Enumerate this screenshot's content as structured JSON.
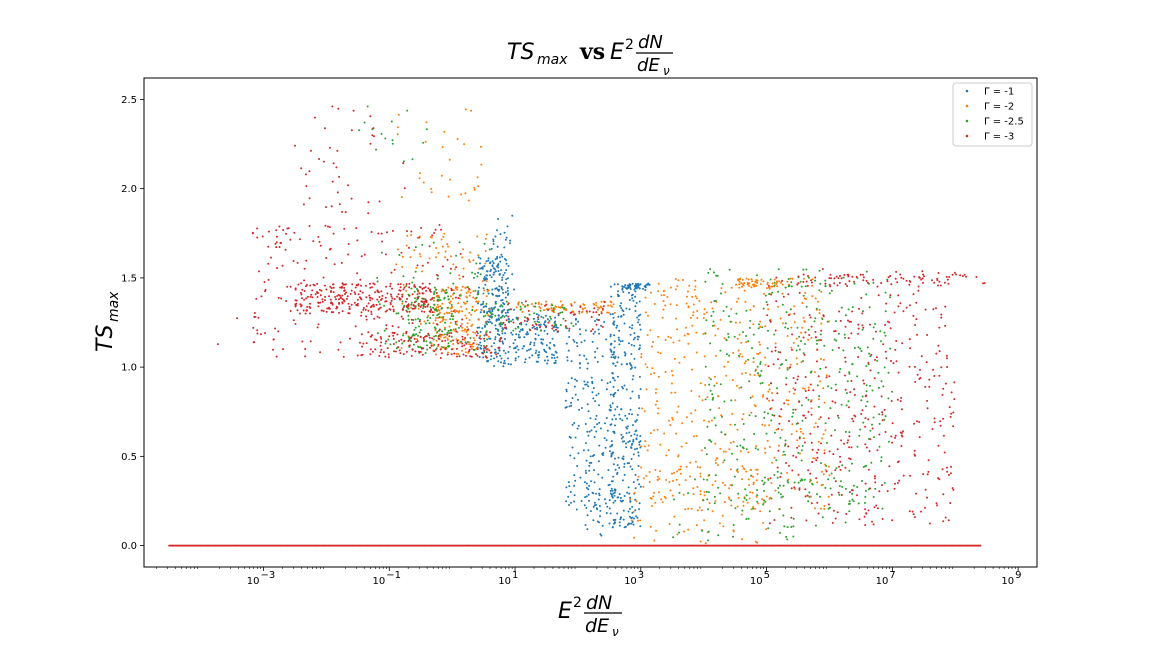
{
  "chart_data": {
    "type": "scatter",
    "title": {
      "lhs": "TS",
      "lhs_sub": "max",
      "vs": "vs",
      "rhs_base": "E",
      "rhs_sup": "2",
      "rhs_num": "dN",
      "rhs_den": "dE",
      "rhs_den_sub": "ν"
    },
    "xlabel": {
      "base": "E",
      "sup": "2",
      "num": "dN",
      "den": "dE",
      "den_sub": "ν"
    },
    "ylabel": {
      "base": "TS",
      "sub": "max"
    },
    "x_scale": "log",
    "xlim_log10": [
      -4.9,
      9.3
    ],
    "ylim": [
      -0.12,
      2.62
    ],
    "x_ticks": [
      {
        "base": "10",
        "exp": "−3",
        "log10": -3
      },
      {
        "base": "10",
        "exp": "−1",
        "log10": -1
      },
      {
        "base": "10",
        "exp": "1",
        "log10": 1
      },
      {
        "base": "10",
        "exp": "3",
        "log10": 3
      },
      {
        "base": "10",
        "exp": "5",
        "log10": 5
      },
      {
        "base": "10",
        "exp": "7",
        "log10": 7
      },
      {
        "base": "10",
        "exp": "9",
        "log10": 9
      }
    ],
    "y_ticks": [
      {
        "label": "0.0",
        "value": 0.0
      },
      {
        "label": "0.5",
        "value": 0.5
      },
      {
        "label": "1.0",
        "value": 1.0
      },
      {
        "label": "1.5",
        "value": 1.5
      },
      {
        "label": "2.0",
        "value": 2.0
      },
      {
        "label": "2.5",
        "value": 2.5
      }
    ],
    "grid": false,
    "legend_position": "top-right",
    "series": [
      {
        "name": "Γ =  -1",
        "color": "#1f77b4",
        "clusters": [
          {
            "lx": [
              0.4,
              0.9
            ],
            "y": [
              1.03,
              1.62
            ],
            "n": 220
          },
          {
            "lx": [
              0.6,
              1.0
            ],
            "y": [
              1.0,
              1.85
            ],
            "n": 60
          },
          {
            "lx": [
              1.0,
              1.7
            ],
            "y": [
              1.02,
              1.3
            ],
            "n": 120
          },
          {
            "lx": [
              1.8,
              2.6
            ],
            "y": [
              0.2,
              1.3
            ],
            "n": 200
          },
          {
            "lx": [
              2.5,
              3.0
            ],
            "y": [
              0.1,
              1.47
            ],
            "n": 280
          },
          {
            "lx": [
              2.7,
              3.15
            ],
            "y": [
              1.43,
              1.47
            ],
            "n": 50
          },
          {
            "lx": [
              2.1,
              2.6
            ],
            "y": [
              0.05,
              0.4
            ],
            "n": 40
          }
        ]
      },
      {
        "name": "Γ =  -2",
        "color": "#ff7f0e",
        "clusters": [
          {
            "lx": [
              -0.3,
              0.4
            ],
            "y": [
              1.07,
              1.45
            ],
            "n": 150
          },
          {
            "lx": [
              -0.9,
              0.6
            ],
            "y": [
              1.1,
              1.75
            ],
            "n": 110
          },
          {
            "lx": [
              -1.0,
              0.5
            ],
            "y": [
              1.9,
              2.5
            ],
            "n": 30
          },
          {
            "lx": [
              1.0,
              2.6
            ],
            "y": [
              1.3,
              1.37
            ],
            "n": 80
          },
          {
            "lx": [
              3.0,
              6.0
            ],
            "y": [
              0.2,
              1.5
            ],
            "n": 450
          },
          {
            "lx": [
              2.8,
              5.0
            ],
            "y": [
              0.0,
              0.45
            ],
            "n": 80
          },
          {
            "lx": [
              4.5,
              5.4
            ],
            "y": [
              1.44,
              1.5
            ],
            "n": 50
          }
        ]
      },
      {
        "name": "Γ =  -2.5",
        "color": "#2ca02c",
        "clusters": [
          {
            "lx": [
              -0.7,
              0.0
            ],
            "y": [
              1.1,
              1.45
            ],
            "n": 130
          },
          {
            "lx": [
              -1.2,
              0.6
            ],
            "y": [
              1.05,
              1.7
            ],
            "n": 80
          },
          {
            "lx": [
              -1.5,
              -0.4
            ],
            "y": [
              2.15,
              2.5
            ],
            "n": 15
          },
          {
            "lx": [
              0.5,
              2.0
            ],
            "y": [
              1.2,
              1.37
            ],
            "n": 70
          },
          {
            "lx": [
              4.0,
              7.0
            ],
            "y": [
              0.2,
              1.55
            ],
            "n": 380
          },
          {
            "lx": [
              3.5,
              6.5
            ],
            "y": [
              0.02,
              0.4
            ],
            "n": 60
          }
        ]
      },
      {
        "name": "Γ =  -3",
        "color": "#d62728",
        "clusters": [
          {
            "lx": [
              -2.5,
              -0.3
            ],
            "y": [
              1.3,
              1.47
            ],
            "n": 280
          },
          {
            "lx": [
              -3.2,
              0.3
            ],
            "y": [
              1.05,
              1.8
            ],
            "n": 200
          },
          {
            "lx": [
              -1.5,
              0.8
            ],
            "y": [
              1.05,
              1.2
            ],
            "n": 120
          },
          {
            "lx": [
              -2.5,
              -0.6
            ],
            "y": [
              1.85,
              2.5
            ],
            "n": 40
          },
          {
            "lx": [
              0.8,
              2.5
            ],
            "y": [
              1.2,
              1.37
            ],
            "n": 60
          },
          {
            "lx": [
              5.0,
              8.0
            ],
            "y": [
              0.1,
              1.55
            ],
            "n": 420
          },
          {
            "lx": [
              5.5,
              8.5
            ],
            "y": [
              1.45,
              1.52
            ],
            "n": 70
          },
          {
            "lx": [
              -4.2,
              -2.5
            ],
            "y": [
              1.1,
              1.7
            ],
            "n": 8
          }
        ]
      }
    ],
    "baseline": {
      "value": 0.0,
      "lx": [
        -4.5,
        8.4
      ],
      "n": 700,
      "series_index": 3
    }
  }
}
